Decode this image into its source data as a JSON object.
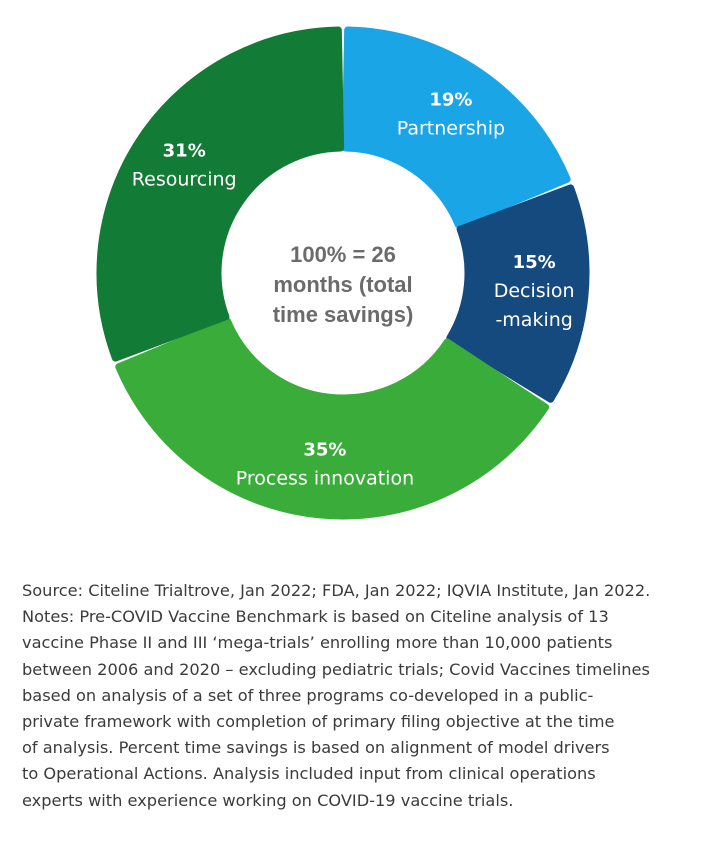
{
  "chart_data": {
    "type": "pie",
    "variant": "donut",
    "center_text": [
      "100% = 26",
      "months (total",
      "time savings)"
    ],
    "slices": [
      {
        "name": "Partnership",
        "name_lines": [
          "Partnership"
        ],
        "value": 19,
        "pct_label": "19%",
        "color": "#1aa5e6"
      },
      {
        "name": "Decision-making",
        "name_lines": [
          "Decision",
          "-making"
        ],
        "value": 15,
        "pct_label": "15%",
        "color": "#154a7f"
      },
      {
        "name": "Process innovation",
        "name_lines": [
          "Process innovation"
        ],
        "value": 35,
        "pct_label": "35%",
        "color": "#3aac3a"
      },
      {
        "name": "Resourcing",
        "name_lines": [
          "Resourcing"
        ],
        "value": 31,
        "pct_label": "31%",
        "color": "#127b35"
      }
    ]
  },
  "notes": {
    "lines": [
      "Source: Citeline Trialtrove, Jan 2022; FDA, Jan 2022; IQVIA Institute, Jan 2022.",
      "Notes: Pre-COVID Vaccine Benchmark is based on Citeline analysis of 13",
      "vaccine Phase II and III ‘mega-trials’ enrolling more than 10,000 patients",
      "between 2006 and 2020 – excluding pediatric trials; Covid Vaccines timelines",
      "based on analysis of a set of three programs co-developed in a public-",
      "private framework with completion of primary filing objective at the time",
      "of analysis. Percent time savings is based on alignment of model drivers",
      "to Operational Actions. Analysis included input from clinical operations",
      "experts with experience working on COVID-19 vaccine trials."
    ]
  }
}
